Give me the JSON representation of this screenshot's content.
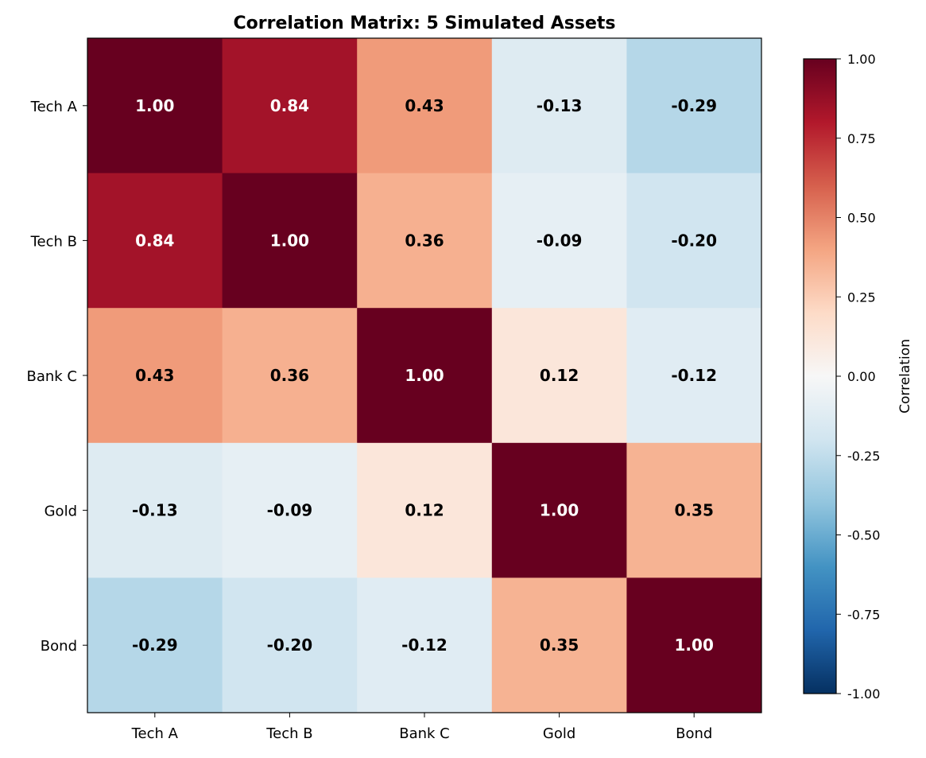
{
  "chart_data": {
    "type": "heatmap",
    "title": "Correlation Matrix: 5 Simulated Assets",
    "row_labels": [
      "Tech A",
      "Tech B",
      "Bank C",
      "Gold",
      "Bond"
    ],
    "col_labels": [
      "Tech A",
      "Tech B",
      "Bank C",
      "Gold",
      "Bond"
    ],
    "values": [
      [
        1.0,
        0.84,
        0.43,
        -0.13,
        -0.29
      ],
      [
        0.84,
        1.0,
        0.36,
        -0.09,
        -0.2
      ],
      [
        0.43,
        0.36,
        1.0,
        0.12,
        -0.12
      ],
      [
        -0.13,
        -0.09,
        0.12,
        1.0,
        0.35
      ],
      [
        -0.29,
        -0.2,
        -0.12,
        0.35,
        1.0
      ]
    ],
    "colormap": "RdBu_r",
    "vmin": -1.0,
    "vmax": 1.0,
    "colorbar": {
      "label": "Correlation",
      "ticks": [
        "1.00",
        "0.75",
        "0.50",
        "0.25",
        "0.00",
        "-0.25",
        "-0.50",
        "-0.75",
        "-1.00"
      ]
    },
    "annotation_format": "2 decimals, bold",
    "grid": false
  }
}
